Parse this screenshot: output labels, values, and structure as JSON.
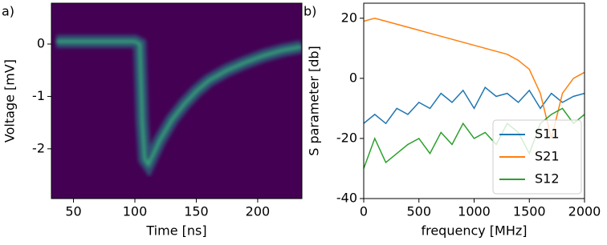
{
  "chart_data": [
    {
      "type": "density",
      "panel_label": "a)",
      "x_label": "Time [ns]",
      "y_label": "Voltage [mV]",
      "xlim": [
        32,
        236
      ],
      "xticks": [
        50,
        100,
        150,
        200
      ],
      "ylim": [
        -2.95,
        0.78
      ],
      "yticks": [
        0,
        -1,
        -2
      ],
      "background": "#440154",
      "color": "#35b779",
      "x": [
        36,
        60,
        80,
        100,
        104,
        106,
        108,
        111,
        115,
        120,
        130,
        140,
        150,
        160,
        175,
        190,
        205,
        220,
        236
      ],
      "values": [
        0.05,
        0.05,
        0.05,
        0.05,
        0.0,
        -1.5,
        -2.2,
        -2.3,
        -2.1,
        -1.85,
        -1.45,
        -1.15,
        -0.9,
        -0.7,
        -0.5,
        -0.35,
        -0.22,
        -0.12,
        -0.05
      ]
    },
    {
      "type": "line",
      "panel_label": "b)",
      "x_label": "frequency [MHz]",
      "y_label": "S parameter [db]",
      "xlim": [
        0,
        2000
      ],
      "xticks": [
        0,
        500,
        1000,
        1500,
        2000
      ],
      "ylim": [
        -40,
        25
      ],
      "yticks": [
        -40,
        -20,
        0,
        20
      ],
      "legend": "lower right",
      "x": [
        0,
        100,
        200,
        300,
        400,
        500,
        600,
        700,
        800,
        900,
        1000,
        1100,
        1200,
        1300,
        1400,
        1500,
        1600,
        1700,
        1800,
        1900,
        2000
      ],
      "series": [
        {
          "name": "S11",
          "color": "#1f77b4",
          "values": [
            -15,
            -12,
            -15,
            -10,
            -12,
            -8,
            -10,
            -5,
            -8,
            -4,
            -10,
            -3,
            -6,
            -5,
            -8,
            -4,
            -10,
            -5,
            -8,
            -6,
            -5
          ]
        },
        {
          "name": "S21",
          "color": "#ff7f0e",
          "values": [
            19,
            20,
            19,
            18,
            17,
            16,
            15,
            14,
            13,
            12,
            11,
            10,
            9,
            8,
            6,
            3,
            -5,
            -20,
            -5,
            0,
            2
          ]
        },
        {
          "name": "S12",
          "color": "#2ca02c",
          "values": [
            -30,
            -20,
            -28,
            -25,
            -22,
            -20,
            -25,
            -18,
            -22,
            -15,
            -20,
            -18,
            -22,
            -15,
            -18,
            -25,
            -15,
            -12,
            -10,
            -15,
            -12
          ]
        }
      ]
    }
  ]
}
